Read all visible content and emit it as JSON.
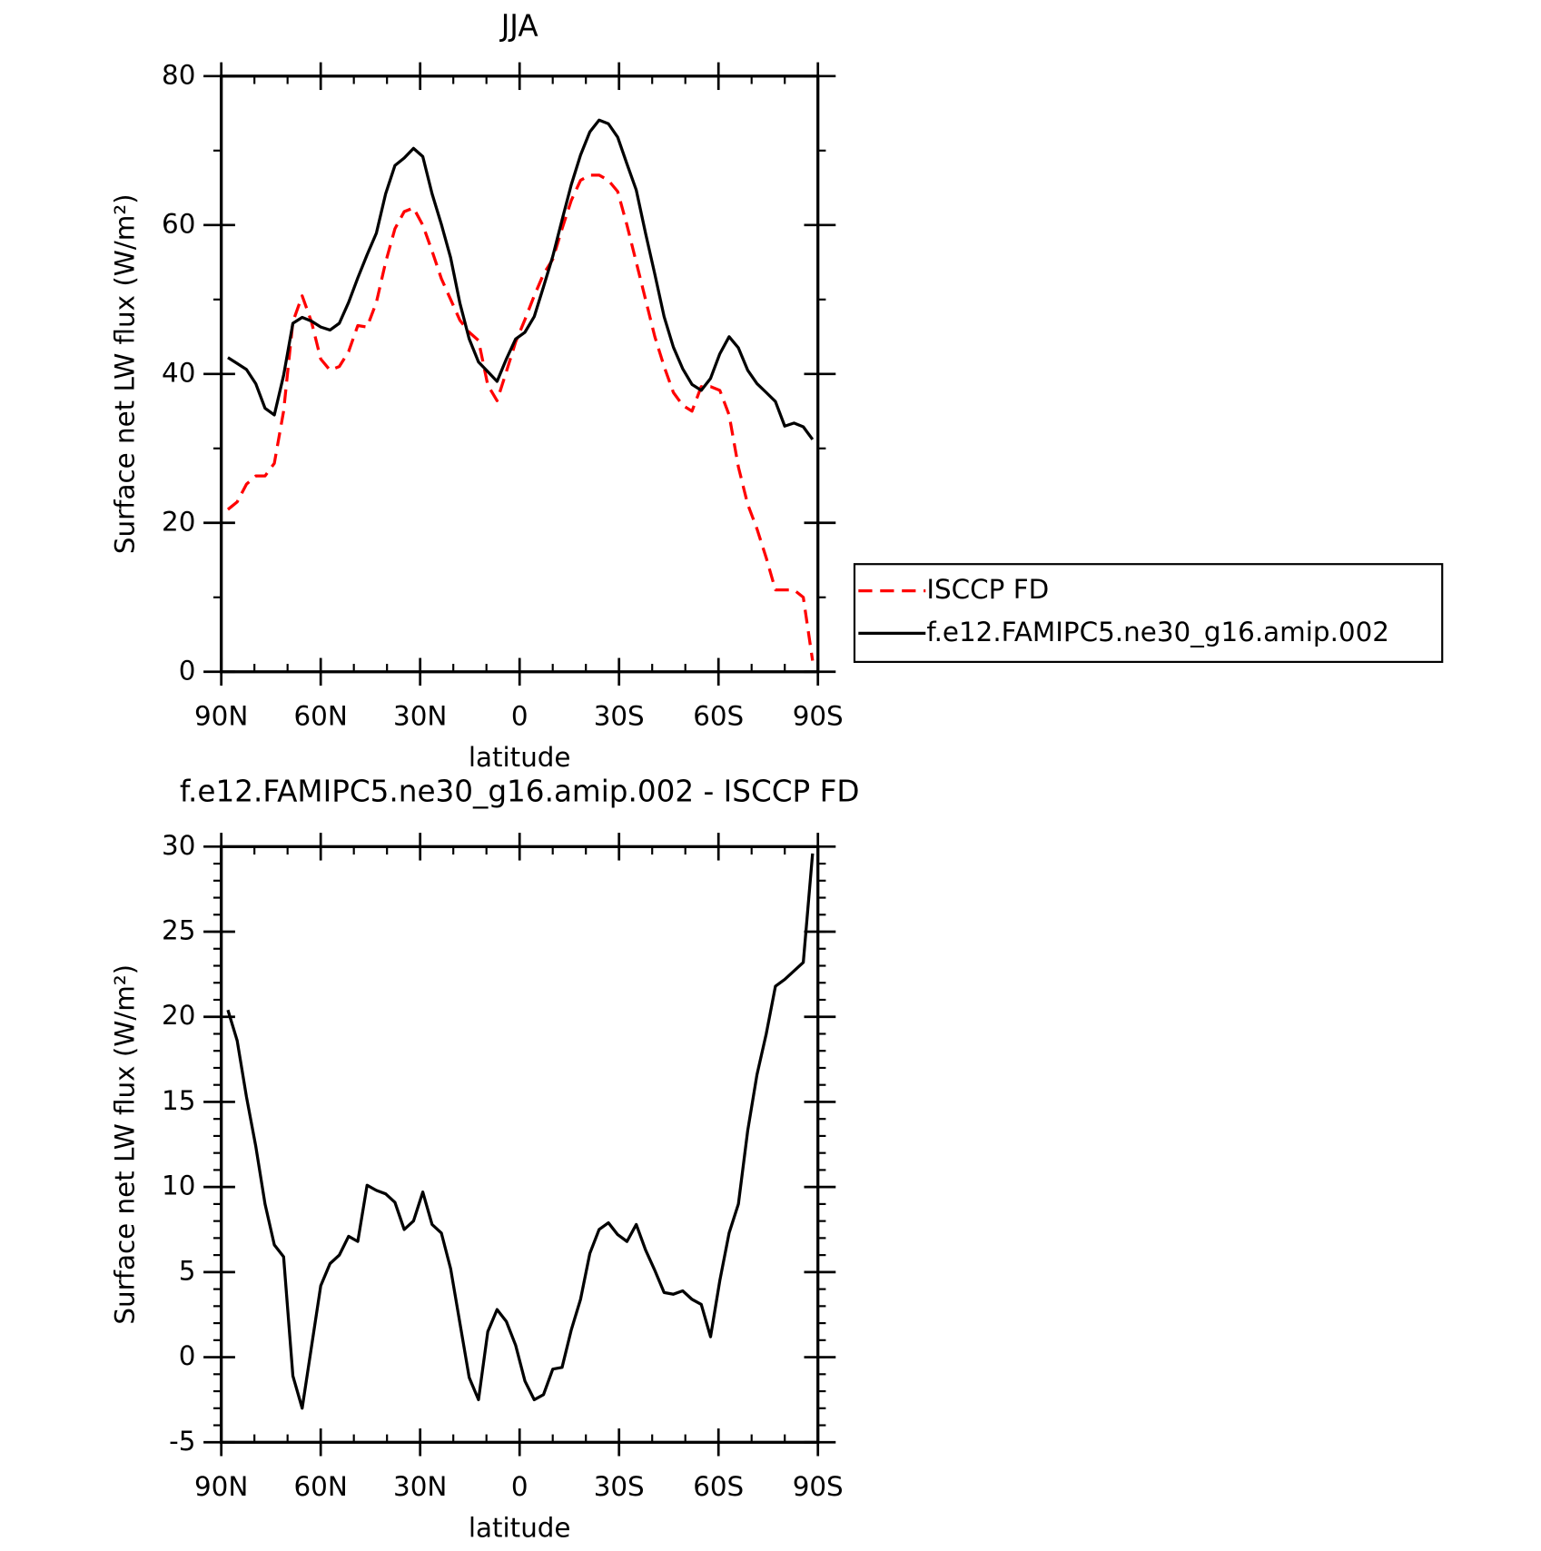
{
  "chart_data": [
    {
      "type": "line",
      "title": "JJA",
      "xlabel": "latitude",
      "ylabel": "Surface net LW flux (W/m²)",
      "x": [
        88,
        85.2,
        82.4,
        79.6,
        76.8,
        74,
        71.2,
        68.4,
        65.6,
        62.8,
        60,
        57.2,
        54.4,
        51.6,
        48.8,
        46,
        43.2,
        40.4,
        37.6,
        34.8,
        32,
        29.2,
        26.4,
        23.6,
        20.8,
        18,
        15.2,
        12.4,
        9.6,
        6.8,
        4,
        1.2,
        -1.6,
        -4.4,
        -7.2,
        -10,
        -12.8,
        -15.6,
        -18.4,
        -21.2,
        -24,
        -26.8,
        -29.6,
        -32.4,
        -35.2,
        -38,
        -40.8,
        -43.6,
        -46.4,
        -49.2,
        -52,
        -54.8,
        -57.6,
        -60.4,
        -63.2,
        -66,
        -68.8,
        -71.6,
        -74.4,
        -77.2,
        -80,
        -82.8,
        -85.6,
        -88.4
      ],
      "series": [
        {
          "name": "ISCCP FD",
          "color": "#ff0000",
          "dashed": true,
          "values": [
            21.8,
            22.8,
            25.2,
            26.3,
            26.3,
            28,
            35,
            47,
            50.5,
            47,
            42,
            40.5,
            41,
            43,
            46.5,
            46.3,
            49.6,
            55,
            59.5,
            61.8,
            62.3,
            60,
            56.5,
            52.8,
            50,
            47.2,
            45.6,
            44.5,
            38.5,
            36.4,
            40.3,
            44.3,
            47.3,
            50.5,
            53.4,
            55.4,
            59.5,
            63.3,
            66,
            66.7,
            66.7,
            66,
            64.5,
            60,
            55,
            50,
            45,
            41,
            37.5,
            35.8,
            35,
            38.3,
            38.3,
            37.8,
            34.5,
            27.5,
            22.5,
            19.2,
            15.3,
            11,
            11,
            11,
            10,
            1.5
          ]
        },
        {
          "name": "f.e12.FAMIPC5.ne30_g16.amip.002",
          "color": "#000000",
          "dashed": false,
          "values": [
            42.2,
            41.4,
            40.6,
            38.7,
            35.4,
            34.5,
            39.8,
            46.8,
            47.6,
            47.1,
            46.3,
            45.9,
            46.8,
            49.6,
            52.9,
            56.0,
            58.9,
            64.2,
            68.0,
            69.0,
            70.3,
            69.2,
            64.2,
            60.1,
            55.6,
            49.5,
            44.7,
            41.6,
            40.3,
            39.0,
            42.0,
            44.7,
            45.6,
            47.7,
            51.7,
            55.8,
            60.7,
            65.4,
            69.4,
            72.5,
            74.1,
            73.6,
            71.8,
            68.2,
            64.7,
            58.9,
            53.4,
            47.7,
            43.6,
            40.7,
            38.6,
            37.8,
            39.4,
            42.7,
            45.0,
            43.5,
            40.5,
            38.7,
            37.5,
            36.3,
            33.0,
            33.4,
            32.9,
            31.2
          ]
        }
      ],
      "xlim": [
        90,
        -90
      ],
      "ylim": [
        0,
        80
      ],
      "xticks": [
        {
          "value": 90,
          "label": "90N"
        },
        {
          "value": 60,
          "label": "60N"
        },
        {
          "value": 30,
          "label": "30N"
        },
        0,
        {
          "value": -30,
          "label": "30S"
        },
        {
          "value": -60,
          "label": "60S"
        },
        {
          "value": -90,
          "label": "90S"
        }
      ],
      "yticks": [
        0,
        20,
        40,
        60,
        80
      ],
      "x_minor_step": 10,
      "y_minor_step": 10,
      "legend": "right"
    },
    {
      "type": "line",
      "title": "f.e12.FAMIPC5.ne30_g16.amip.002 - ISCCP FD",
      "xlabel": "latitude",
      "ylabel": "Surface net LW flux (W/m²)",
      "x": [
        88,
        85.2,
        82.4,
        79.6,
        76.8,
        74,
        71.2,
        68.4,
        65.6,
        62.8,
        60,
        57.2,
        54.4,
        51.6,
        48.8,
        46,
        43.2,
        40.4,
        37.6,
        34.8,
        32,
        29.2,
        26.4,
        23.6,
        20.8,
        18,
        15.2,
        12.4,
        9.6,
        6.8,
        4,
        1.2,
        -1.6,
        -4.4,
        -7.2,
        -10,
        -12.8,
        -15.6,
        -18.4,
        -21.2,
        -24,
        -26.8,
        -29.6,
        -32.4,
        -35.2,
        -38,
        -40.8,
        -43.6,
        -46.4,
        -49.2,
        -52,
        -54.8,
        -57.6,
        -60.4,
        -63.2,
        -66,
        -68.8,
        -71.6,
        -74.4,
        -77.2,
        -80,
        -82.8,
        -85.6,
        -88.4
      ],
      "series": [
        {
          "color": "#000000",
          "dashed": false,
          "values": [
            20.4,
            18.6,
            15.3,
            12.4,
            9,
            6.6,
            5.9,
            -1.1,
            -3,
            0.6,
            4.2,
            5.5,
            6,
            7.1,
            6.8,
            10.1,
            9.8,
            9.6,
            9.1,
            7.5,
            8,
            9.7,
            7.8,
            7.3,
            5.2,
            2,
            -1.2,
            -2.5,
            1.5,
            2.8,
            2.1,
            0.7,
            -1.4,
            -2.5,
            -2.2,
            -0.7,
            -0.6,
            1.6,
            3.4,
            6.1,
            7.5,
            7.9,
            7.2,
            6.8,
            7.8,
            6.3,
            5.1,
            3.8,
            3.7,
            3.9,
            3.4,
            3.1,
            1.2,
            4.5,
            7.3,
            9,
            13.3,
            16.6,
            19,
            21.8,
            22.2,
            22.7,
            23.2,
            29.6
          ]
        }
      ],
      "xlim": [
        90,
        -90
      ],
      "ylim": [
        -5,
        30
      ],
      "xticks": [
        {
          "value": 90,
          "label": "90N"
        },
        {
          "value": 60,
          "label": "60N"
        },
        {
          "value": 30,
          "label": "30N"
        },
        0,
        {
          "value": -30,
          "label": "30S"
        },
        {
          "value": -60,
          "label": "60S"
        },
        {
          "value": -90,
          "label": "90S"
        }
      ],
      "yticks": [
        -5,
        0,
        5,
        10,
        15,
        20,
        25,
        30
      ],
      "x_minor_step": 10,
      "y_minor_step": 1
    }
  ]
}
